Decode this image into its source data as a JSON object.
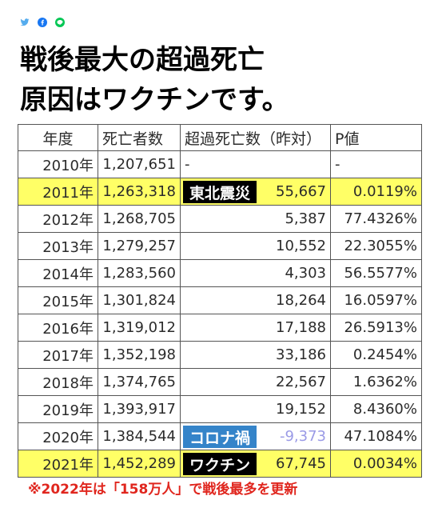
{
  "share": {
    "icons": [
      {
        "icon": "twitter-icon",
        "color": "#55acee"
      },
      {
        "icon": "facebook-icon",
        "color": "#1877f2"
      },
      {
        "icon": "line-icon",
        "color": "#06c755"
      }
    ]
  },
  "title": {
    "line1": "戦後最大の超過死亡",
    "line2": "原因はワクチンです。"
  },
  "table": {
    "headers": [
      "年度",
      "死亡者数",
      "超過死亡数（昨対）",
      "P値"
    ],
    "rows": [
      {
        "year": "2010年",
        "deaths": "1,207,651",
        "excess": "-",
        "p": "-"
      },
      {
        "year": "2011年",
        "deaths": "1,263,318",
        "label": "東北震災",
        "label_bg": "#000000",
        "excess": "55,667",
        "p": "0.0119%",
        "highlight": true
      },
      {
        "year": "2012年",
        "deaths": "1,268,705",
        "excess": "5,387",
        "p": "77.4326%"
      },
      {
        "year": "2013年",
        "deaths": "1,279,257",
        "excess": "10,552",
        "p": "22.3055%"
      },
      {
        "year": "2014年",
        "deaths": "1,283,560",
        "excess": "4,303",
        "p": "56.5577%"
      },
      {
        "year": "2015年",
        "deaths": "1,301,824",
        "excess": "18,264",
        "p": "16.0597%"
      },
      {
        "year": "2016年",
        "deaths": "1,319,012",
        "excess": "17,188",
        "p": "26.5913%"
      },
      {
        "year": "2017年",
        "deaths": "1,352,198",
        "excess": "33,186",
        "p": "0.2454%"
      },
      {
        "year": "2018年",
        "deaths": "1,374,765",
        "excess": "22,567",
        "p": "1.6362%"
      },
      {
        "year": "2019年",
        "deaths": "1,393,917",
        "excess": "19,152",
        "p": "8.4360%"
      },
      {
        "year": "2020年",
        "deaths": "1,384,544",
        "label": "コロナ禍",
        "label_bg": "#3584c9",
        "excess": "-9,373",
        "excess_color": "#9a9ae6",
        "p": "47.1084%"
      },
      {
        "year": "2021年",
        "deaths": "1,452,289",
        "label": "ワクチン",
        "label_bg": "#000000",
        "excess": "67,745",
        "p": "0.0034%",
        "highlight": true
      }
    ]
  },
  "footnote": "※2022年は「158万人」で戦後最多を更新",
  "colors": {
    "highlight": "#ffff66",
    "footnote": "#e0261e"
  }
}
